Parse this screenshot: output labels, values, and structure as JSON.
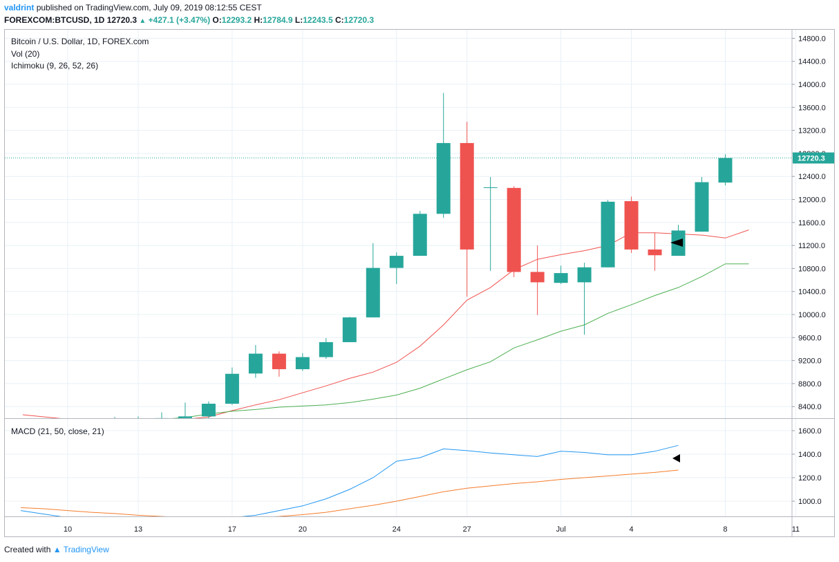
{
  "header": {
    "user": "valdrint",
    "published": "published on TradingView.com, July 09, 2019 08:12:55 CEST",
    "symbol": "FOREXCOM:BTCUSD, 1D",
    "last": "12720.3",
    "change": "+427.1 (+3.47%)",
    "open_label": "O:",
    "open": "12293.2",
    "high_label": "H:",
    "high": "12784.9",
    "low_label": "L:",
    "low": "12243.5",
    "close_label": "C:",
    "close": "12720.3"
  },
  "legend": {
    "title": "Bitcoin / U.S. Dollar, 1D, FOREX.com",
    "vol": "Vol (20)",
    "ichimoku": "Ichimoku (9, 26, 52, 26)",
    "macd": "MACD (21, 50, close, 21)"
  },
  "footer": {
    "created_with": "Created with",
    "brand": "TradingView"
  },
  "colors": {
    "up": "#26a69a",
    "down": "#ef5350",
    "red_line": "#f0514e",
    "green_line": "#4caf50",
    "macd_line": "#2196f3",
    "signal_line": "#f57c2b",
    "grid": "#e8f0f7",
    "last_price": "#26a69a"
  },
  "chart_data": [
    {
      "type": "candlestick",
      "title": "Bitcoin / U.S. Dollar, 1D, FOREX.com",
      "x": [
        "2019-06-12",
        "2019-06-13",
        "2019-06-14",
        "2019-06-15",
        "2019-06-16",
        "2019-06-17",
        "2019-06-18",
        "2019-06-19",
        "2019-06-20",
        "2019-06-21",
        "2019-06-22",
        "2019-06-23",
        "2019-06-24",
        "2019-06-25",
        "2019-06-26",
        "2019-06-27",
        "2019-06-28",
        "2019-06-29",
        "2019-06-30",
        "2019-07-01",
        "2019-07-02",
        "2019-07-03",
        "2019-07-04",
        "2019-07-05",
        "2019-07-06",
        "2019-07-07",
        "2019-07-08",
        "2019-07-09"
      ],
      "open": [
        8100,
        8140,
        8175,
        8200,
        8230,
        8450,
        8975,
        9320,
        9050,
        9260,
        9520,
        9950,
        10810,
        11020,
        11750,
        12980,
        12210,
        12200,
        10740,
        10550,
        10560,
        10820,
        11970,
        11130,
        11020,
        11440,
        12293.2,
        12293.2
      ],
      "high": [
        8220,
        8230,
        8300,
        8470,
        8490,
        9080,
        9470,
        9360,
        9330,
        9590,
        9960,
        11240,
        11080,
        11800,
        13850,
        13350,
        12390,
        12230,
        11200,
        10850,
        10900,
        11990,
        12050,
        11420,
        11560,
        12390,
        12784.9,
        12784.9
      ],
      "low": [
        8050,
        8080,
        8120,
        8150,
        8200,
        8430,
        8900,
        8920,
        9020,
        9230,
        9520,
        9950,
        10530,
        11020,
        11680,
        10310,
        10760,
        10650,
        9990,
        10530,
        9650,
        10820,
        11070,
        10760,
        11020,
        11440,
        12243.5,
        12243.5
      ],
      "close": [
        8140,
        8175,
        8200,
        8230,
        8450,
        8970,
        9320,
        9050,
        9260,
        9520,
        9950,
        10810,
        11020,
        11750,
        12980,
        11130,
        12210,
        10740,
        10560,
        10720,
        10820,
        11960,
        11130,
        11030,
        11460,
        12300,
        12720.3,
        12720.3
      ],
      "ichimoku_red_line": [
        8100,
        8110,
        8140,
        8180,
        8220,
        8330,
        8430,
        8520,
        8640,
        8760,
        8890,
        9000,
        9170,
        9450,
        9820,
        10250,
        10470,
        10780,
        10960,
        11040,
        11110,
        11200,
        11420,
        11420,
        11400,
        11380,
        11330,
        11470
      ],
      "ichimoku_green_line": [
        8130,
        8150,
        8180,
        8210,
        8270,
        8320,
        8350,
        8390,
        8410,
        8430,
        8470,
        8530,
        8600,
        8720,
        8880,
        9040,
        9180,
        9420,
        9560,
        9710,
        9820,
        10020,
        10170,
        10330,
        10470,
        10660,
        10880,
        10880
      ],
      "last_price_label": "12720.3",
      "y_ticks": [
        "8400.0",
        "8800.0",
        "9200.0",
        "9600.0",
        "10000.0",
        "10400.0",
        "10800.0",
        "11200.0",
        "11600.0",
        "12000.0",
        "12400.0",
        "12800.0",
        "13200.0",
        "13600.0",
        "14000.0",
        "14400.0",
        "14800.0"
      ],
      "x_ticks": [
        "10",
        "13",
        "17",
        "20",
        "24",
        "27",
        "Jul",
        "4",
        "8",
        "11"
      ],
      "ylim": [
        8160,
        14900
      ]
    },
    {
      "type": "line",
      "title": "MACD (21, 50, close, 21)",
      "series": [
        {
          "values": [
            920,
            890,
            860,
            840,
            830,
            830,
            835,
            840,
            850,
            860,
            880,
            920,
            960,
            1020,
            1100,
            1200,
            1340,
            1370,
            1445,
            1430,
            1410,
            1395,
            1380,
            1425,
            1415,
            1395,
            1395,
            1425,
            1475
          ]
        },
        {
          "values": [
            945,
            935,
            920,
            905,
            895,
            880,
            870,
            860,
            855,
            855,
            860,
            870,
            885,
            905,
            935,
            965,
            1000,
            1040,
            1080,
            1110,
            1130,
            1150,
            1165,
            1185,
            1200,
            1215,
            1230,
            1245,
            1265
          ]
        }
      ],
      "x": [
        "2019-06-08",
        "2019-06-09",
        "2019-06-10",
        "2019-06-11",
        "2019-06-12",
        "2019-06-13",
        "2019-06-14",
        "2019-06-15",
        "2019-06-16",
        "2019-06-17",
        "2019-06-18",
        "2019-06-19",
        "2019-06-20",
        "2019-06-21",
        "2019-06-22",
        "2019-06-23",
        "2019-06-24",
        "2019-06-25",
        "2019-06-26",
        "2019-06-27",
        "2019-06-28",
        "2019-06-29",
        "2019-06-30",
        "2019-07-01",
        "2019-07-02",
        "2019-07-03",
        "2019-07-04",
        "2019-07-05",
        "2019-07-06"
      ],
      "y_ticks": [
        "1000.0",
        "1200.0",
        "1400.0",
        "1600.0"
      ],
      "ylim": [
        870,
        1650
      ]
    }
  ]
}
